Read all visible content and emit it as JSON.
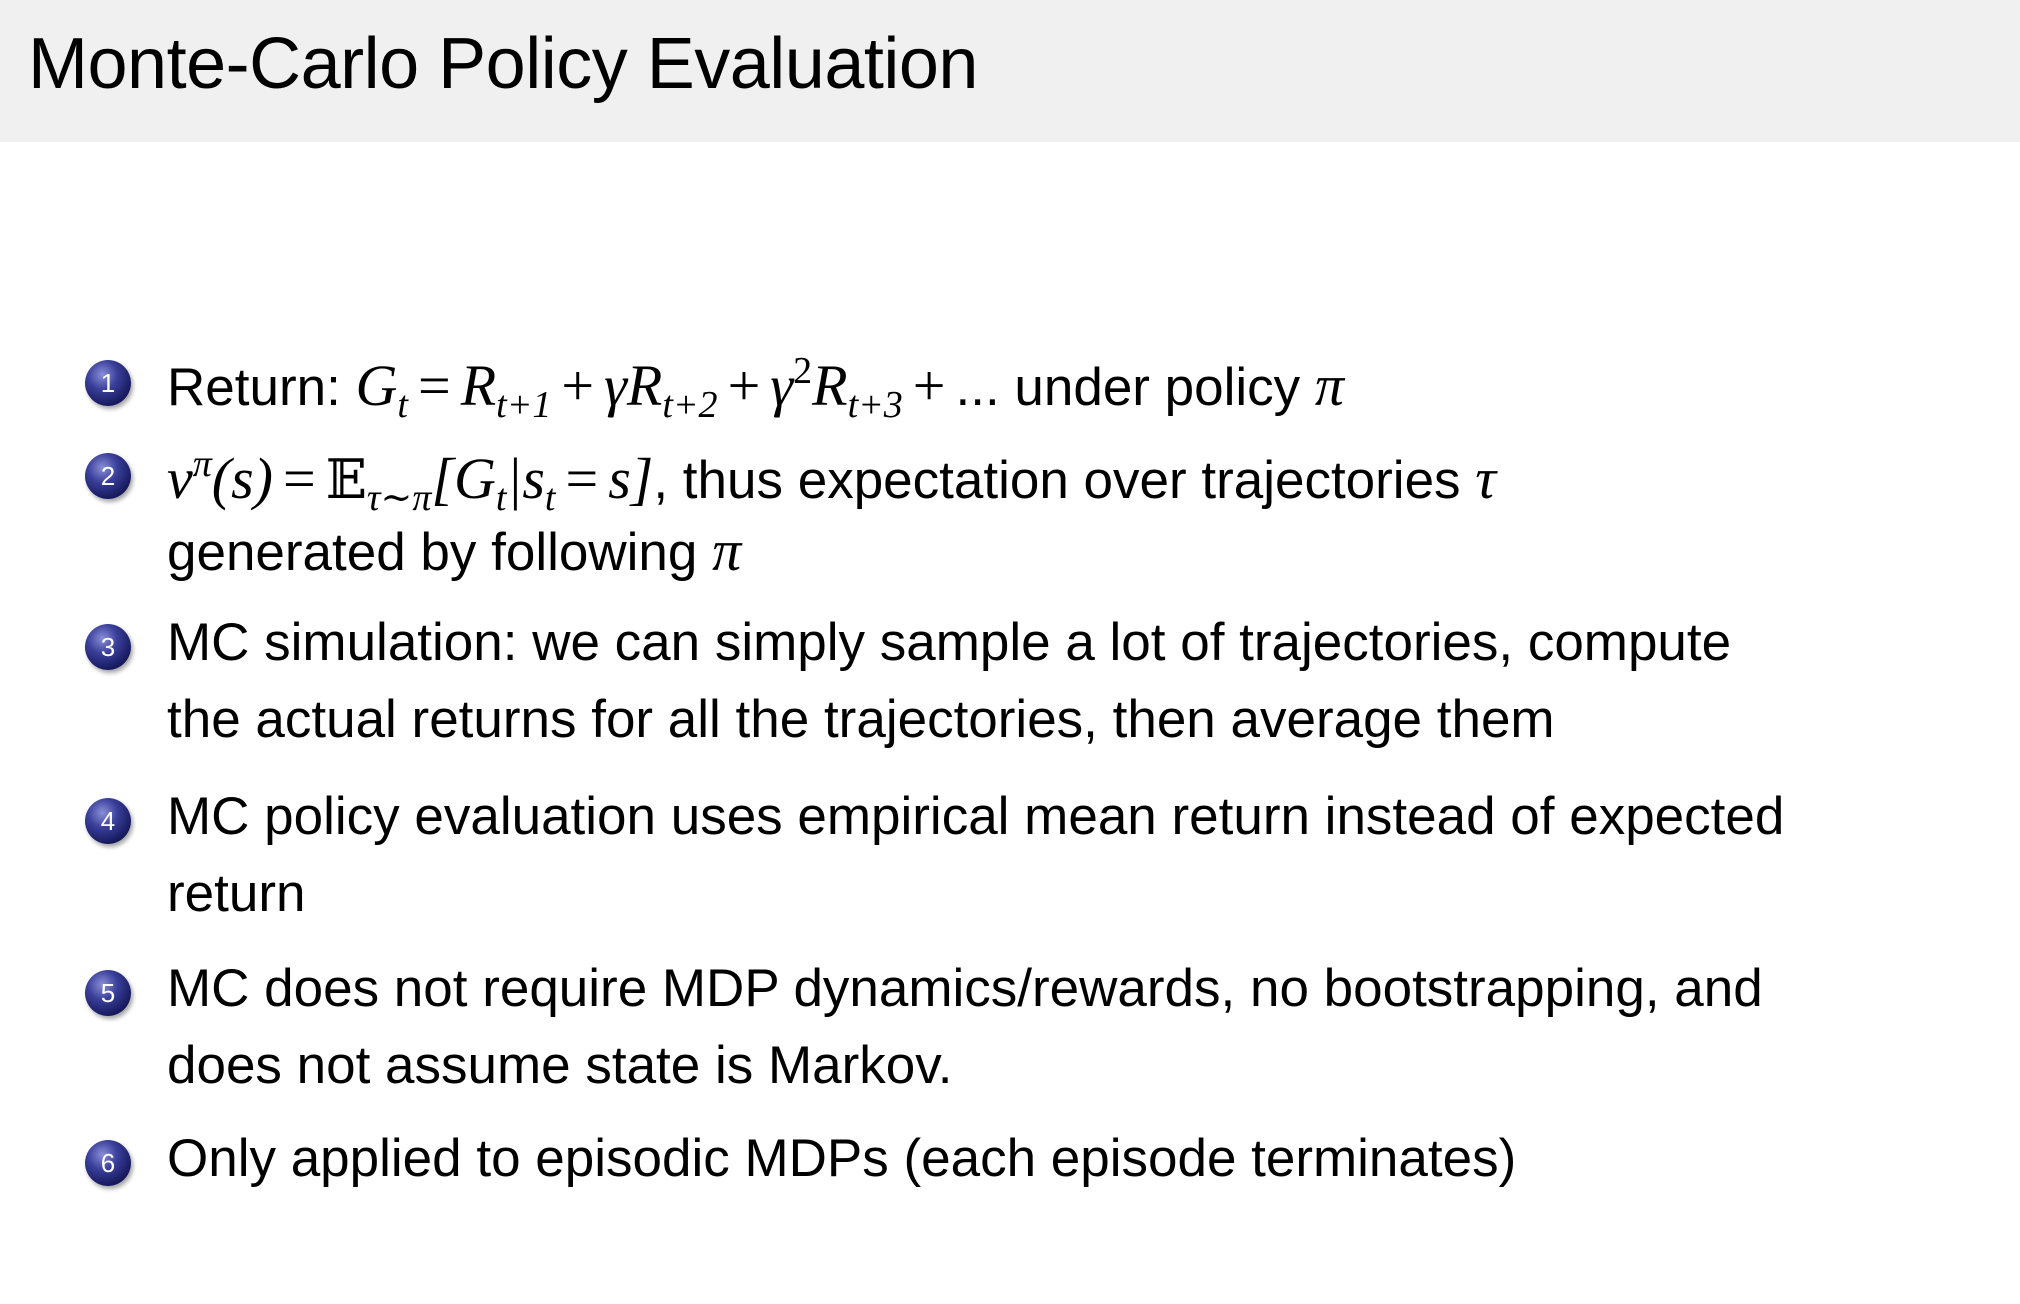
{
  "title": "Monte-Carlo Policy Evaluation",
  "bullet_color": "#1a1d6a",
  "items": [
    {
      "number": "1",
      "lines": [
        [
          {
            "t": "Return:  "
          },
          {
            "m": "G",
            "sub": "t"
          },
          {
            "op": "="
          },
          {
            "m": "R",
            "sub": "t+1"
          },
          {
            "op": "+"
          },
          {
            "m": "γR",
            "sub": "t+2"
          },
          {
            "op": "+"
          },
          {
            "m": "γ",
            "sup": "2"
          },
          {
            "m": "R",
            "sub": "t+3"
          },
          {
            "op": "+"
          },
          {
            "t": "... under policy "
          },
          {
            "m": "π"
          }
        ]
      ]
    },
    {
      "number": "2",
      "lines": [
        [
          {
            "m": "v",
            "sup": "π"
          },
          {
            "m": "(s)"
          },
          {
            "op": "="
          },
          {
            "bb": "𝔼",
            "sub": "τ∼π"
          },
          {
            "m": "[G",
            "sub": "t"
          },
          {
            "m": "|s",
            "sub": "t"
          },
          {
            "op": "="
          },
          {
            "m": "s]"
          },
          {
            "t": ", thus expectation over trajectories "
          },
          {
            "m": "τ"
          }
        ],
        [
          {
            "t": "generated by following "
          },
          {
            "m": "π"
          }
        ]
      ]
    },
    {
      "number": "3",
      "lines": [
        [
          {
            "t": "MC simulation:  we can simply sample a lot of trajectories, compute"
          }
        ],
        [
          {
            "t": "the actual returns for all the trajectories, then average them"
          }
        ]
      ]
    },
    {
      "number": "4",
      "lines": [
        [
          {
            "t": "MC policy evaluation uses empirical mean return instead of expected"
          }
        ],
        [
          {
            "t": "return"
          }
        ]
      ]
    },
    {
      "number": "5",
      "lines": [
        [
          {
            "t": "MC does not require MDP dynamics/rewards, no bootstrapping, and"
          }
        ],
        [
          {
            "t": "does not assume state is Markov."
          }
        ]
      ]
    },
    {
      "number": "6",
      "lines": [
        [
          {
            "t": "Only applied to episodic MDPs (each episode terminates)"
          }
        ]
      ]
    }
  ]
}
